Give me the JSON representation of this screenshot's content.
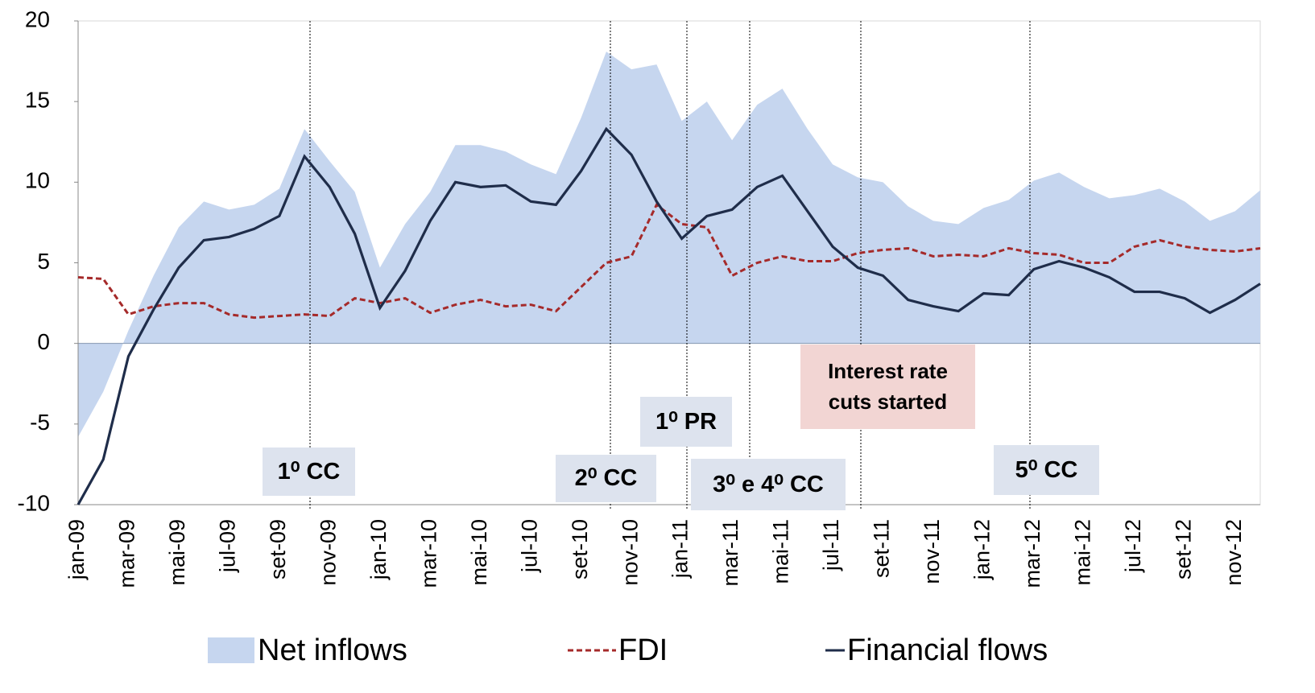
{
  "chart_data": {
    "type": "area-line",
    "categories": [
      "jan-09",
      null,
      "mar-09",
      null,
      "mai-09",
      null,
      "jul-09",
      null,
      "set-09",
      null,
      "nov-09",
      null,
      "jan-10",
      null,
      "mar-10",
      null,
      "mai-10",
      null,
      "jul-10",
      null,
      "set-10",
      null,
      "nov-10",
      null,
      "jan-11",
      null,
      "mar-11",
      null,
      "mai-11",
      null,
      "jul-11",
      null,
      "set-11",
      null,
      "nov-11",
      null,
      "jan-12",
      null,
      "mar-12",
      null,
      "mai-12",
      null,
      "jul-12",
      null,
      "set-12",
      null,
      "nov-12",
      null
    ],
    "series": [
      {
        "name": "Net inflows",
        "kind": "area",
        "color": "#c6d6ef",
        "values": [
          -5.8,
          -3,
          0.8,
          4.2,
          7.2,
          8.8,
          8.3,
          8.6,
          9.6,
          13.3,
          11.3,
          9.4,
          4.7,
          7.4,
          9.4,
          12.3,
          12.3,
          11.9,
          11.1,
          10.5,
          14.0,
          18.1,
          17.0,
          17.3,
          13.8,
          15.0,
          12.6,
          14.8,
          15.8,
          13.3,
          11.1,
          10.3,
          10.0,
          8.5,
          7.6,
          7.4,
          8.4,
          8.9,
          10.1,
          10.6,
          9.7,
          9.0,
          9.2,
          9.6,
          8.8,
          7.6,
          8.2,
          9.5
        ]
      },
      {
        "name": "FDI",
        "kind": "dashed",
        "color": "#a52a2a",
        "values": [
          4.1,
          4.0,
          1.8,
          2.3,
          2.5,
          2.5,
          1.8,
          1.6,
          1.7,
          1.8,
          1.7,
          2.8,
          2.5,
          2.8,
          1.9,
          2.4,
          2.7,
          2.3,
          2.4,
          2.0,
          3.5,
          5.0,
          5.4,
          8.6,
          7.4,
          7.2,
          4.2,
          5.0,
          5.4,
          5.1,
          5.1,
          5.6,
          5.8,
          5.9,
          5.4,
          5.5,
          5.4,
          5.9,
          5.6,
          5.5,
          5.0,
          5.0,
          6.0,
          6.4,
          6.0,
          5.8,
          5.7,
          5.9
        ]
      },
      {
        "name": "Financial flows",
        "kind": "line",
        "color": "#1f2d4a",
        "values": [
          -10,
          -7.2,
          -0.8,
          2.1,
          4.7,
          6.4,
          6.6,
          7.1,
          7.9,
          11.6,
          9.7,
          6.8,
          2.2,
          4.5,
          7.6,
          10.0,
          9.7,
          9.8,
          8.8,
          8.6,
          10.7,
          13.3,
          11.7,
          8.8,
          6.5,
          7.9,
          8.3,
          9.7,
          10.4,
          8.2,
          6.0,
          4.7,
          4.2,
          2.7,
          2.3,
          2.0,
          3.1,
          3.0,
          4.6,
          5.1,
          4.7,
          4.1,
          3.2,
          3.2,
          2.8,
          1.9,
          2.7,
          3.7
        ]
      }
    ],
    "ylim": [
      -10,
      20
    ],
    "yticks": [
      -10,
      -5,
      0,
      5,
      10,
      15,
      20
    ],
    "grid": false,
    "legend": "bottom",
    "annotations": [
      "1⁰ CC",
      "2⁰ CC",
      "1⁰ PR",
      "3⁰ e 4⁰ CC",
      "Interest rate cuts started",
      "5⁰ CC"
    ]
  }
}
